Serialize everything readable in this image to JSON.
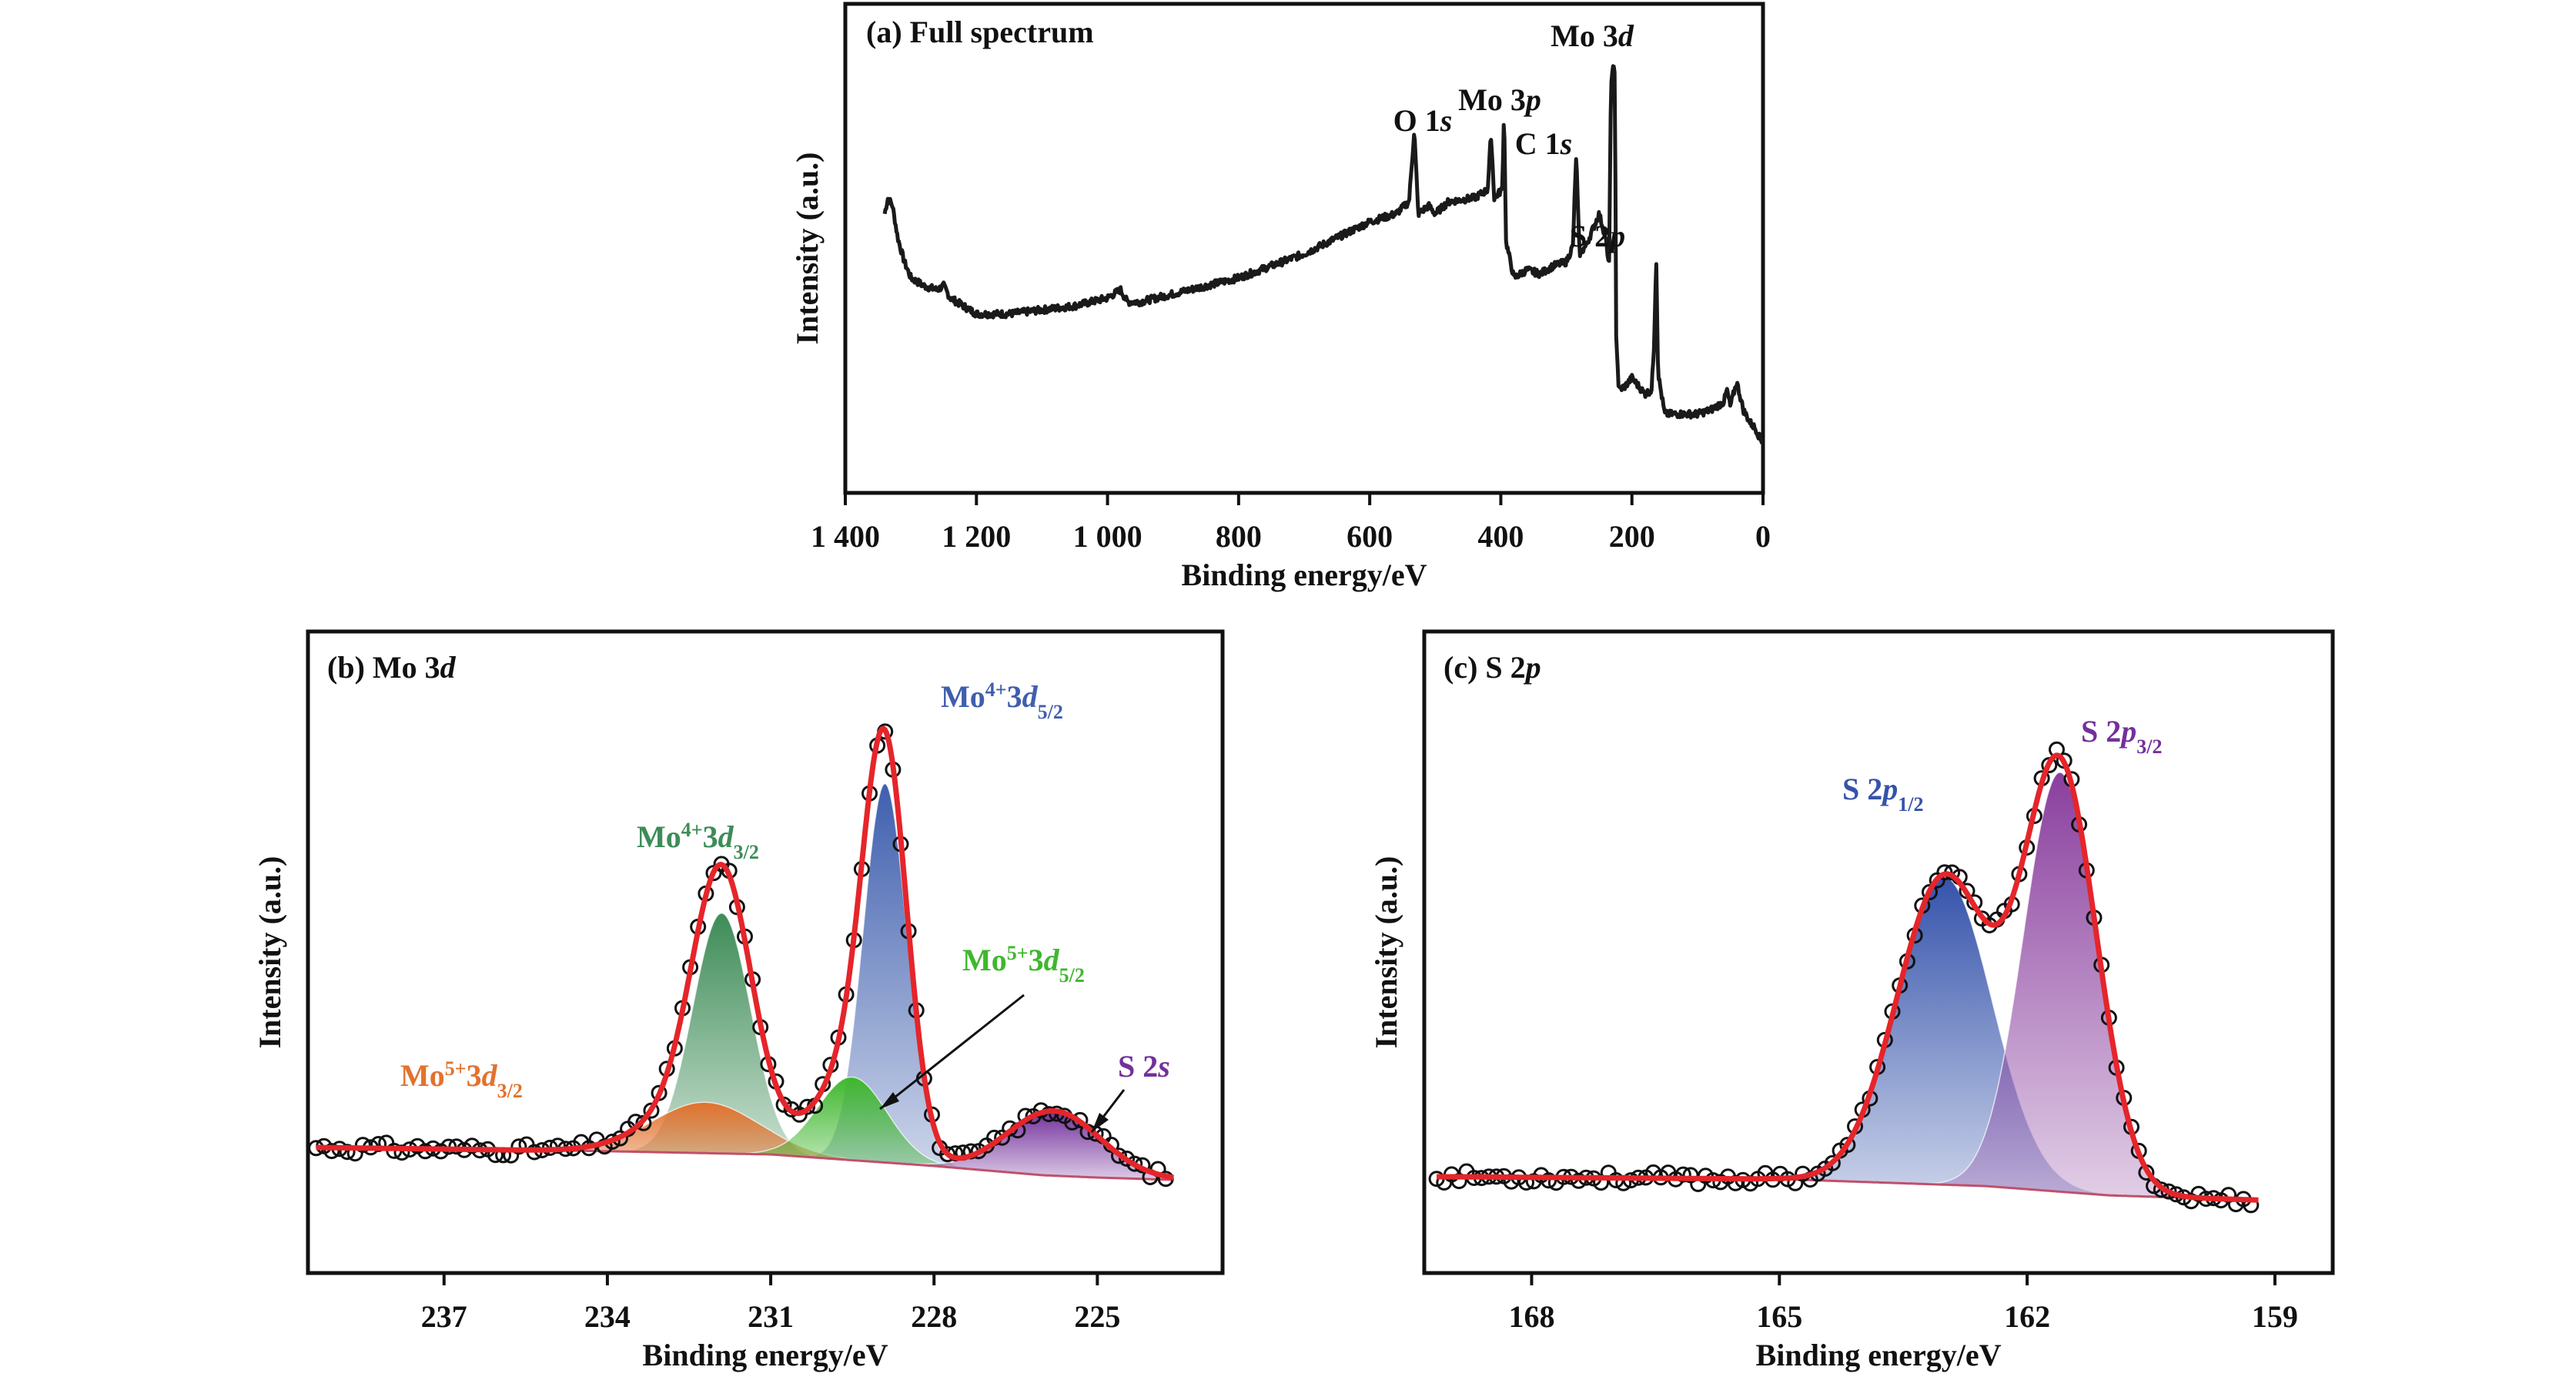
{
  "chart_data": [
    {
      "type": "line",
      "title": "(a) Full spectrum",
      "xlabel": "Binding energy/eV",
      "ylabel": "Intensity (a.u.)",
      "xlim": [
        1400,
        0
      ],
      "x_reversed": true,
      "xticks": [
        1400,
        1200,
        1000,
        800,
        600,
        400,
        200,
        0
      ],
      "xtick_labels": [
        "1 400",
        "1 200",
        "1 000",
        "800",
        "600",
        "400",
        "200",
        "0"
      ],
      "y_units": "a.u.",
      "series": [
        {
          "color": "#1a1a1a",
          "points": [
            [
              1340,
              0.62
            ],
            [
              1335,
              0.66
            ],
            [
              1328,
              0.64
            ],
            [
              1320,
              0.56
            ],
            [
              1310,
              0.5
            ],
            [
              1300,
              0.46
            ],
            [
              1280,
              0.44
            ],
            [
              1260,
              0.43
            ],
            [
              1250,
              0.44
            ],
            [
              1240,
              0.41
            ],
            [
              1220,
              0.39
            ],
            [
              1200,
              0.37
            ],
            [
              1150,
              0.37
            ],
            [
              1100,
              0.38
            ],
            [
              1050,
              0.39
            ],
            [
              1000,
              0.41
            ],
            [
              980,
              0.43
            ],
            [
              970,
              0.4
            ],
            [
              950,
              0.4
            ],
            [
              900,
              0.42
            ],
            [
              850,
              0.44
            ],
            [
              800,
              0.46
            ],
            [
              750,
              0.49
            ],
            [
              700,
              0.52
            ],
            [
              650,
              0.56
            ],
            [
              600,
              0.6
            ],
            [
              560,
              0.62
            ],
            [
              540,
              0.65
            ],
            [
              532,
              0.83
            ],
            [
              526,
              0.62
            ],
            [
              510,
              0.64
            ],
            [
              500,
              0.62
            ],
            [
              480,
              0.65
            ],
            [
              440,
              0.66
            ],
            [
              420,
              0.68
            ],
            [
              415,
              0.82
            ],
            [
              410,
              0.66
            ],
            [
              398,
              0.68
            ],
            [
              395,
              0.88
            ],
            [
              392,
              0.55
            ],
            [
              380,
              0.46
            ],
            [
              360,
              0.48
            ],
            [
              340,
              0.47
            ],
            [
              320,
              0.49
            ],
            [
              300,
              0.5
            ],
            [
              290,
              0.54
            ],
            [
              285,
              0.77
            ],
            [
              280,
              0.52
            ],
            [
              270,
              0.54
            ],
            [
              260,
              0.58
            ],
            [
              250,
              0.62
            ],
            [
              240,
              0.56
            ],
            [
              235,
              0.48
            ],
            [
              232,
              0.92
            ],
            [
              229,
              1.0
            ],
            [
              226,
              0.96
            ],
            [
              224,
              0.32
            ],
            [
              220,
              0.18
            ],
            [
              210,
              0.19
            ],
            [
              200,
              0.21
            ],
            [
              190,
              0.19
            ],
            [
              180,
              0.17
            ],
            [
              170,
              0.18
            ],
            [
              166,
              0.3
            ],
            [
              163,
              0.52
            ],
            [
              160,
              0.22
            ],
            [
              150,
              0.12
            ],
            [
              120,
              0.12
            ],
            [
              100,
              0.12
            ],
            [
              80,
              0.13
            ],
            [
              60,
              0.15
            ],
            [
              55,
              0.18
            ],
            [
              50,
              0.14
            ],
            [
              40,
              0.2
            ],
            [
              30,
              0.13
            ],
            [
              20,
              0.1
            ],
            [
              10,
              0.08
            ],
            [
              5,
              0.06
            ],
            [
              0,
              0.05
            ]
          ]
        }
      ],
      "annotations": [
        {
          "text": "O 1",
          "italic": "s",
          "x": 532
        },
        {
          "text": "Mo 3",
          "italic": "p",
          "x": 395
        },
        {
          "text": "C 1",
          "italic": "s",
          "x": 285
        },
        {
          "text": "Mo 3",
          "italic": "d",
          "x": 229
        },
        {
          "text": "S 2",
          "italic": "p",
          "x": 163
        }
      ]
    },
    {
      "type": "line",
      "title": "(b) Mo 3d",
      "xlabel": "Binding energy/eV",
      "ylabel": "Intensity (a.u.)",
      "xlim": [
        239.5,
        222.7
      ],
      "x_reversed": true,
      "xticks": [
        237,
        234,
        231,
        228,
        225
      ],
      "xtick_labels": [
        "237",
        "234",
        "231",
        "228",
        "225"
      ],
      "background": {
        "color": "#c0506a",
        "points": [
          [
            239.3,
            0.04
          ],
          [
            234,
            0.032
          ],
          [
            231,
            0.025
          ],
          [
            228,
            0.0
          ],
          [
            226,
            -0.02
          ],
          [
            225,
            -0.025
          ],
          [
            223.6,
            -0.03
          ]
        ]
      },
      "components": [
        {
          "label": "Mo⁴⁺3d3/2",
          "center": 231.9,
          "height": 0.52,
          "fwhm": 1.25,
          "color": "#3d8c57"
        },
        {
          "label": "Mo⁴⁺3d5/2",
          "center": 228.9,
          "height": 0.82,
          "fwhm": 0.95,
          "color": "#3f5fae"
        },
        {
          "label": "Mo⁵⁺3d3/2",
          "center": 232.2,
          "height": 0.11,
          "fwhm": 2.3,
          "color": "#e2722e"
        },
        {
          "label": "Mo⁵⁺3d5/2",
          "center": 229.5,
          "height": 0.18,
          "fwhm": 1.5,
          "color": "#3fb72e"
        },
        {
          "label": "S 2s",
          "center": 225.8,
          "height": 0.14,
          "fwhm": 2.0,
          "color": "#73309c"
        }
      ],
      "envelope_color": "#e5252a",
      "peak_labels": [
        {
          "base": "Mo",
          "sup": "4+",
          "mid": "3",
          "italic": "d",
          "sub": "5/2",
          "color": "#3f5fae"
        },
        {
          "base": "Mo",
          "sup": "4+",
          "mid": "3",
          "italic": "d",
          "sub": "3/2",
          "color": "#3d8c57"
        },
        {
          "base": "Mo",
          "sup": "5+",
          "mid": "3",
          "italic": "d",
          "sub": "5/2",
          "color": "#3fb72e"
        },
        {
          "base": "Mo",
          "sup": "5+",
          "mid": "3",
          "italic": "d",
          "sub": "3/2",
          "color": "#e2722e"
        },
        {
          "base": "S 2",
          "italic": "s",
          "color": "#73309c"
        }
      ]
    },
    {
      "type": "line",
      "title": "(c) S 2p",
      "xlabel": "Binding energy/eV",
      "ylabel": "Intensity (a.u.)",
      "xlim": [
        169.3,
        158.3
      ],
      "x_reversed": true,
      "xticks": [
        168,
        165,
        162,
        159
      ],
      "xtick_labels": [
        "168",
        "165",
        "162",
        "159"
      ],
      "background": {
        "color": "#c0506a",
        "points": [
          [
            169.0,
            0.0
          ],
          [
            165,
            -0.005
          ],
          [
            162.5,
            -0.02
          ],
          [
            161,
            -0.04
          ],
          [
            159.2,
            -0.05
          ]
        ]
      },
      "components": [
        {
          "label": "S 2p1/2",
          "center": 163.0,
          "height": 0.66,
          "fwhm": 1.35,
          "color": "#3553ab"
        },
        {
          "label": "S 2p3/2",
          "center": 161.6,
          "height": 0.9,
          "fwhm": 1.05,
          "color": "#8a3f9e"
        }
      ],
      "envelope_color": "#e5252a",
      "peak_labels": [
        {
          "base": "S 2",
          "italic": "p",
          "sub": "1/2",
          "color": "#3553ab"
        },
        {
          "base": "S 2",
          "italic": "p",
          "sub": "3/2",
          "color": "#73309c"
        }
      ]
    }
  ]
}
